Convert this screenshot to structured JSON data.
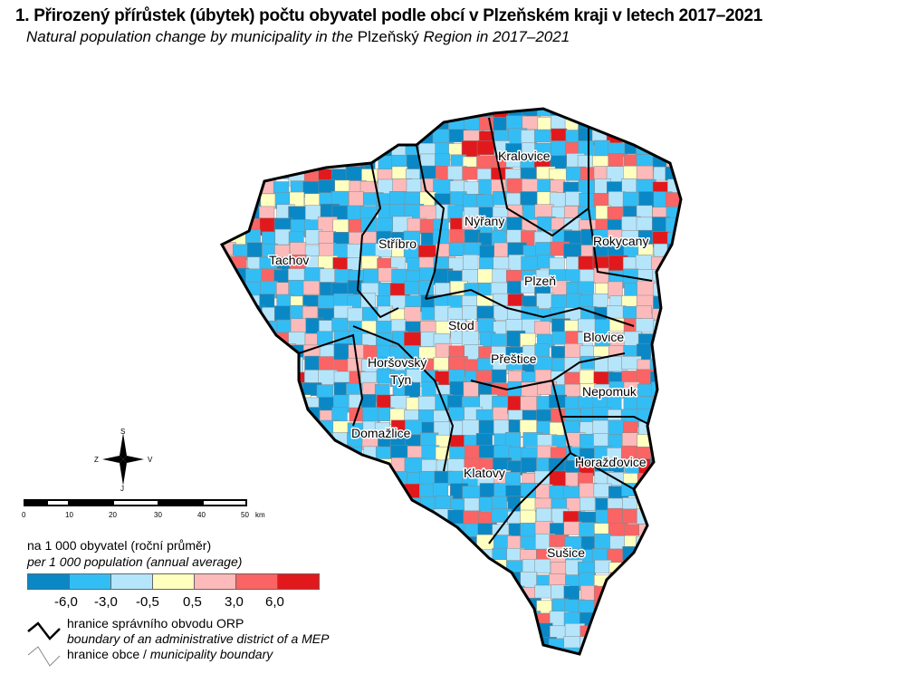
{
  "title": "1. Přirozený přírůstek (úbytek) počtu obyvatel podle obcí v Plzeňském kraji v letech 2017–2021",
  "subtitle_prefix": "Natural population change by municipality in the",
  "subtitle_region": "Plzeňský",
  "subtitle_suffix": "Region in 2017–2021",
  "districts": [
    {
      "name": "Kralovice"
    },
    {
      "name": "Nýřany"
    },
    {
      "name": "Rokycany"
    },
    {
      "name": "Stříbro"
    },
    {
      "name": "Tachov"
    },
    {
      "name": "Plzeň"
    },
    {
      "name": "Stod"
    },
    {
      "name": "Blovice"
    },
    {
      "name": "Horšovský"
    },
    {
      "name": "Týn"
    },
    {
      "name": "Přeštice"
    },
    {
      "name": "Nepomuk"
    },
    {
      "name": "Domažlice"
    },
    {
      "name": "Klatovy"
    },
    {
      "name": "Horažďovice"
    },
    {
      "name": "Sušice"
    }
  ],
  "compass": {
    "n": "S",
    "s": "J",
    "w": "Z",
    "e": "V"
  },
  "scale": {
    "ticks": [
      "0",
      "10",
      "20",
      "30",
      "40",
      "50"
    ],
    "unit": "km"
  },
  "legend": {
    "heading_cz": "na 1 000 obyvatel (roční průměr)",
    "heading_en": "per 1 000 population (annual average)",
    "colors": [
      "#0a88c6",
      "#33bdf5",
      "#b5e5fb",
      "#ffffc0",
      "#fcbaba",
      "#fa6464",
      "#e2191c"
    ],
    "breaks": [
      "-6,0",
      "-3,0",
      "-0,5",
      "0,5",
      "3,0",
      "6,0"
    ],
    "orp_cz": "hranice správního obvodu ORP",
    "orp_en": "boundary of an administrative district of a MEP",
    "muni_cz": "hranice obce /",
    "muni_en": "municipality boundary"
  }
}
